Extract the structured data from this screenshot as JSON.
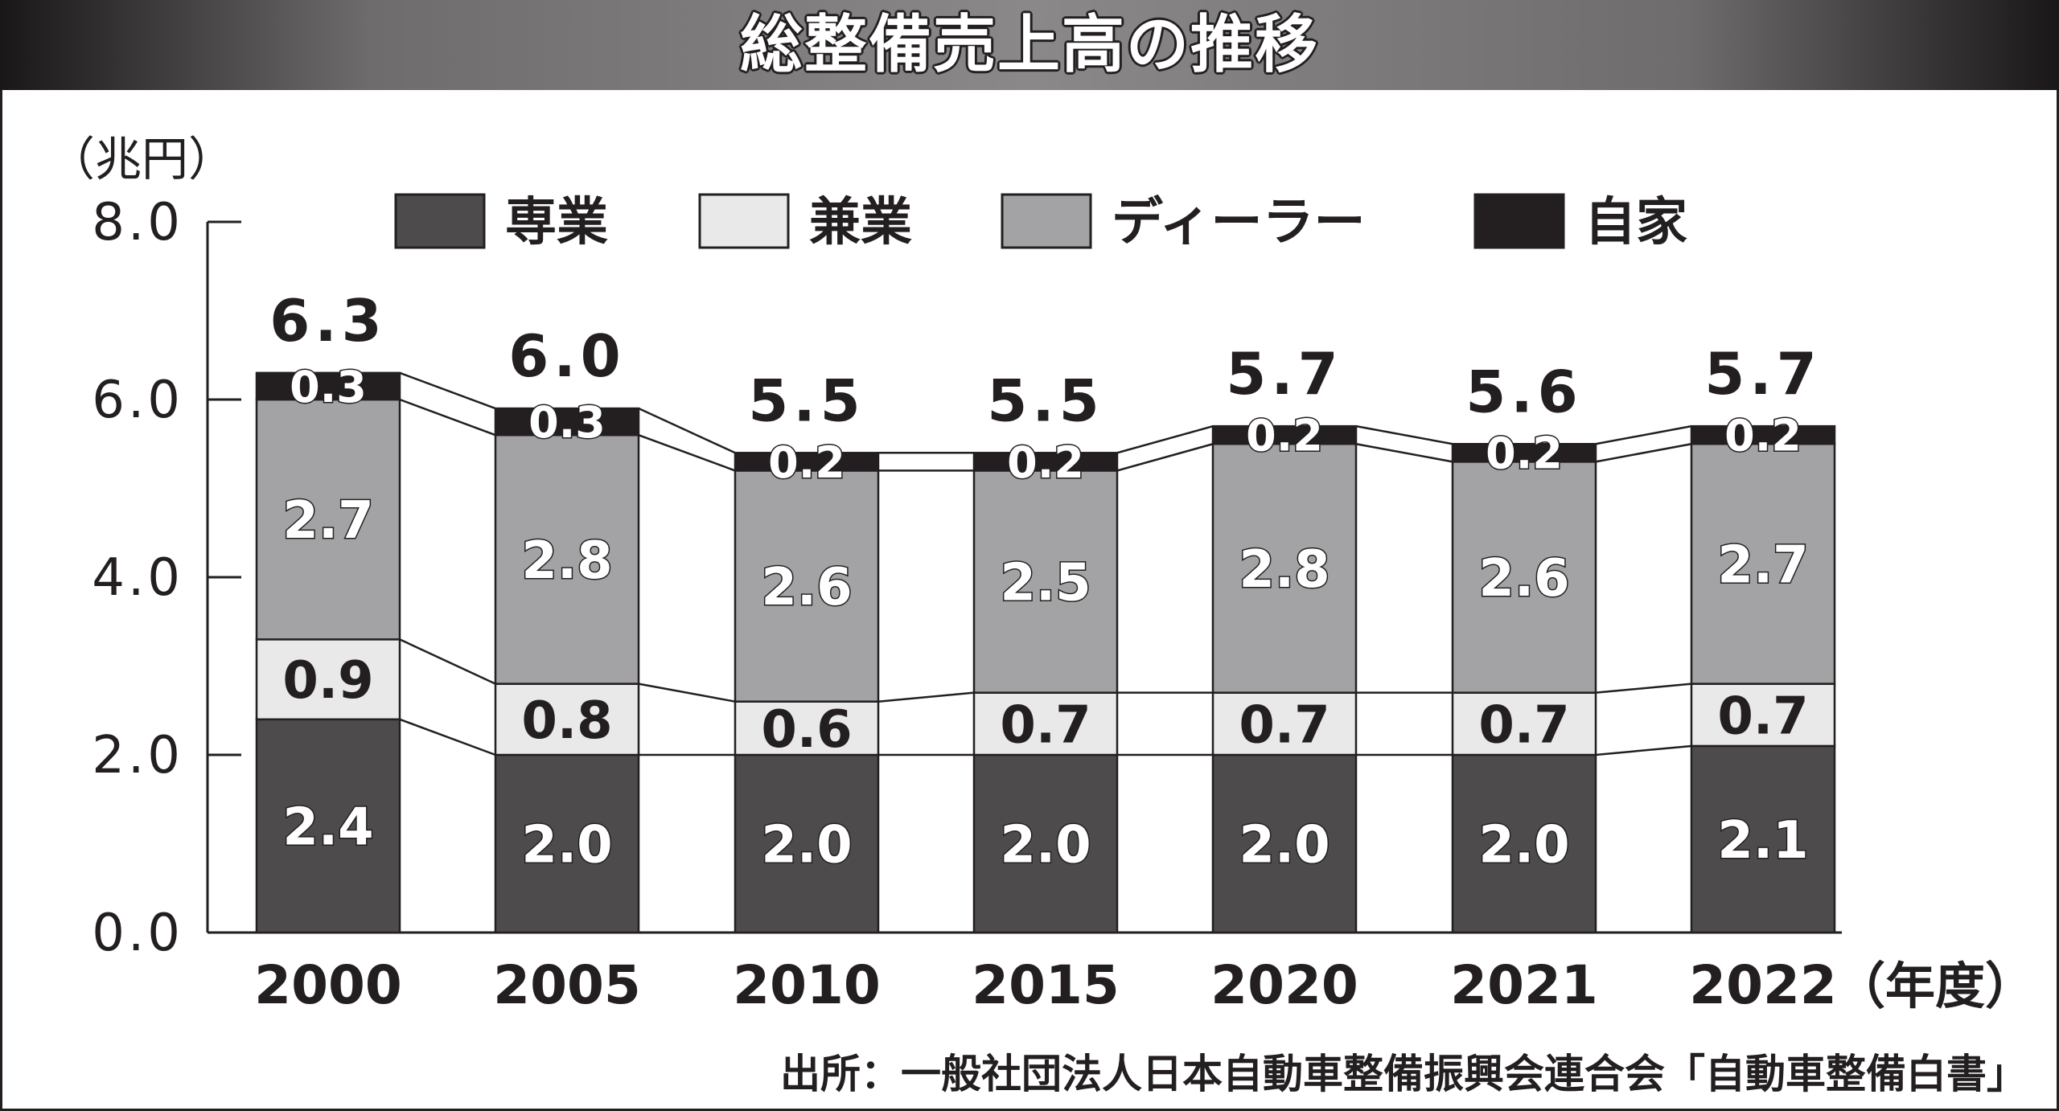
{
  "title": "総整備売上高の推移",
  "source": "出所：一般社団法人日本自動車整備振興会連合会「自動車整備白書」",
  "chart_data": {
    "type": "bar",
    "stacked": true,
    "y_unit": "（兆円）",
    "x_unit": "（年度）",
    "ylim": [
      0,
      8
    ],
    "yticks": [
      "0.0",
      "2.0",
      "4.0",
      "6.0",
      "8.0"
    ],
    "categories": [
      "2000",
      "2005",
      "2010",
      "2015",
      "2020",
      "2021",
      "2022"
    ],
    "totals": [
      "6.3",
      "6.0",
      "5.5",
      "5.5",
      "5.7",
      "5.6",
      "5.7"
    ],
    "series": [
      {
        "name": "専業",
        "values": [
          2.4,
          2.0,
          2.0,
          2.0,
          2.0,
          2.0,
          2.1
        ],
        "labels": [
          "2.4",
          "2.0",
          "2.0",
          "2.0",
          "2.0",
          "2.0",
          "2.1"
        ],
        "color": "#4d4b4c",
        "label_style": "outline"
      },
      {
        "name": "兼業",
        "values": [
          0.9,
          0.8,
          0.6,
          0.7,
          0.7,
          0.7,
          0.7
        ],
        "labels": [
          "0.9",
          "0.8",
          "0.6",
          "0.7",
          "0.7",
          "0.7",
          "0.7"
        ],
        "color": "#e9e9ea",
        "label_style": "dark"
      },
      {
        "name": "ディーラー",
        "values": [
          2.7,
          2.8,
          2.6,
          2.5,
          2.8,
          2.6,
          2.7
        ],
        "labels": [
          "2.7",
          "2.8",
          "2.6",
          "2.5",
          "2.8",
          "2.6",
          "2.7"
        ],
        "color": "#a3a3a5",
        "label_style": "outline"
      },
      {
        "name": "自家",
        "values": [
          0.3,
          0.3,
          0.2,
          0.2,
          0.2,
          0.2,
          0.2
        ],
        "labels": [
          "0.3",
          "0.3",
          "0.2",
          "0.2",
          "0.2",
          "0.2",
          "0.2"
        ],
        "color": "#231f20",
        "label_style": "outline"
      }
    ],
    "legend_position": "top",
    "grid": false
  }
}
